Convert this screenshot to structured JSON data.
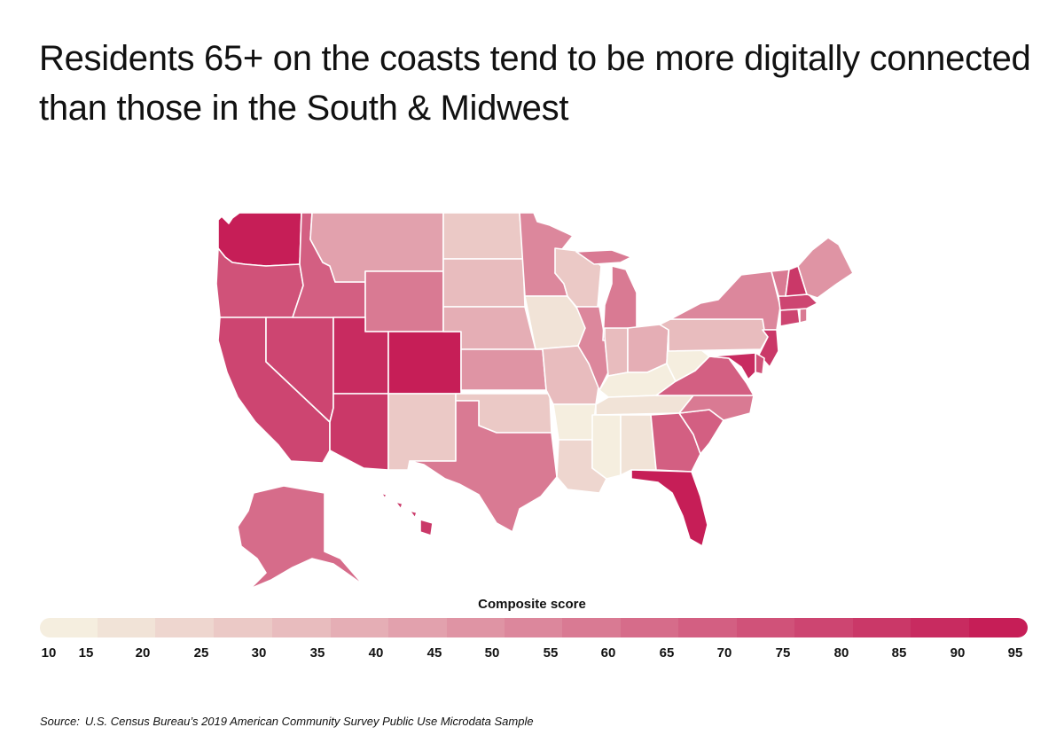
{
  "title": "Residents 65+ on the coasts tend to be more digitally connected than those in the South & Midwest",
  "legend": {
    "title": "Composite score",
    "ticks": [
      "10",
      "15",
      "20",
      "25",
      "30",
      "35",
      "40",
      "45",
      "50",
      "55",
      "60",
      "65",
      "70",
      "75",
      "80",
      "85",
      "90",
      "95"
    ],
    "colors": [
      "#f5eedf",
      "#f1e3d7",
      "#eed6cf",
      "#ebc9c6",
      "#e8bcbe",
      "#e5aeb5",
      "#e2a1ad",
      "#df94a4",
      "#dc879c",
      "#d97a93",
      "#d66c8a",
      "#d35f82",
      "#d05279",
      "#cd4571",
      "#ca3868",
      "#c82b60",
      "#c61e57"
    ]
  },
  "source": {
    "label": "Source:",
    "text": "U.S. Census Bureau’s 2019 American Community Survey Public Use Microdata Sample"
  },
  "map_data": {
    "region": "United States",
    "metric": "Composite score",
    "states": {
      "WA": 92,
      "OR": 72,
      "CA": 75,
      "NV": 78,
      "ID": 65,
      "MT": 42,
      "WY": 55,
      "UT": 88,
      "CO": 90,
      "AZ": 80,
      "NM": 28,
      "ND": 25,
      "SD": 30,
      "NE": 35,
      "KS": 45,
      "OK": 28,
      "TX": 58,
      "MN": 52,
      "IA": 15,
      "MO": 30,
      "AR": 12,
      "LA": 22,
      "WI": 28,
      "IL": 50,
      "MI": 55,
      "IN": 30,
      "OH": 38,
      "KY": 12,
      "TN": 15,
      "MS": 12,
      "AL": 15,
      "GA": 65,
      "FL": 90,
      "SC": 68,
      "NC": 55,
      "VA": 65,
      "WV": 10,
      "PA": 32,
      "NY": 52,
      "VT": 55,
      "NH": 82,
      "ME": 45,
      "MA": 75,
      "CT": 75,
      "RI": 58,
      "NJ": 82,
      "DE": 70,
      "MD": 88,
      "AK": 62,
      "HI": 82
    }
  }
}
